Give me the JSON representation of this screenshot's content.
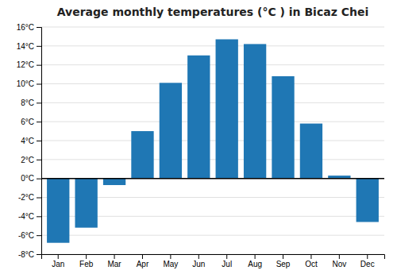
{
  "chart_data": {
    "type": "bar",
    "title": "Average monthly temperatures (°C ) in Bicaz Chei",
    "categories": [
      "Jan",
      "Feb",
      "Mar",
      "Apr",
      "May",
      "Jun",
      "Jul",
      "Aug",
      "Sep",
      "Oct",
      "Nov",
      "Dec"
    ],
    "values": [
      -6.8,
      -5.2,
      -0.7,
      5.0,
      10.1,
      13.0,
      14.7,
      14.2,
      10.8,
      5.8,
      0.3,
      -4.6
    ],
    "ylim": [
      -8,
      16
    ],
    "yticks": [
      {
        "value": -8,
        "label": "-8°C"
      },
      {
        "value": -6,
        "label": "-6°C"
      },
      {
        "value": -4,
        "label": "-4°C"
      },
      {
        "value": -2,
        "label": "-2°C"
      },
      {
        "value": 0,
        "label": "0°C"
      },
      {
        "value": 2,
        "label": "2°C"
      },
      {
        "value": 4,
        "label": "4°C"
      },
      {
        "value": 6,
        "label": "6°C"
      },
      {
        "value": 8,
        "label": "8°C"
      },
      {
        "value": 10,
        "label": "10°C"
      },
      {
        "value": 12,
        "label": "12°C"
      },
      {
        "value": 14,
        "label": "14°C"
      },
      {
        "value": 16,
        "label": "16°C"
      }
    ],
    "grid": true
  }
}
